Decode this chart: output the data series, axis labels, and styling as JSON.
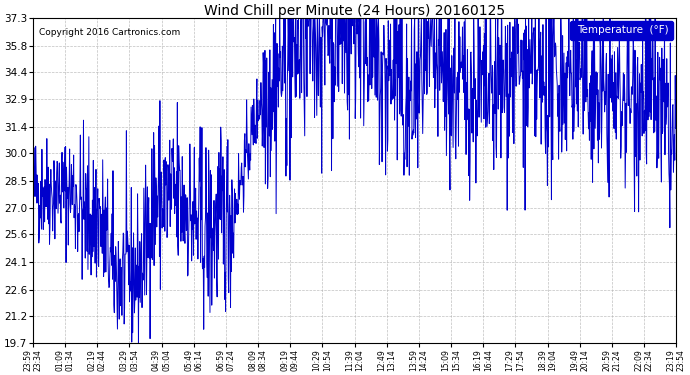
{
  "title": "Wind Chill per Minute (24 Hours) 20160125",
  "copyright": "Copyright 2016 Cartronics.com",
  "legend_label": "Temperature  (°F)",
  "line_color": "#0000cc",
  "background_color": "#ffffff",
  "plot_bg_color": "#ffffff",
  "grid_color": "#b0b0b0",
  "ylim": [
    19.7,
    37.3
  ],
  "yticks": [
    19.7,
    21.2,
    22.6,
    24.1,
    25.6,
    27.0,
    28.5,
    30.0,
    31.4,
    32.9,
    34.4,
    35.8,
    37.3
  ],
  "xtick_labels_row1": [
    "23:59",
    "01:09",
    "02:19",
    "03:29",
    "04:39",
    "05:49",
    "06:59",
    "08:09",
    "09:19",
    "10:29",
    "11:39",
    "12:49",
    "13:59",
    "15:09",
    "16:19",
    "17:29",
    "18:39",
    "19:49",
    "20:59",
    "22:09",
    "23:19"
  ],
  "xtick_labels_row2": [
    "23:34",
    "01:34",
    "02:44",
    "03:54",
    "05:04",
    "06:14",
    "07:24",
    "08:34",
    "09:44",
    "10:54",
    "12:04",
    "13:14",
    "14:24",
    "15:34",
    "16:44",
    "17:54",
    "19:04",
    "20:14",
    "21:24",
    "22:34",
    "23:54"
  ],
  "seed": 42,
  "n_points": 1440
}
